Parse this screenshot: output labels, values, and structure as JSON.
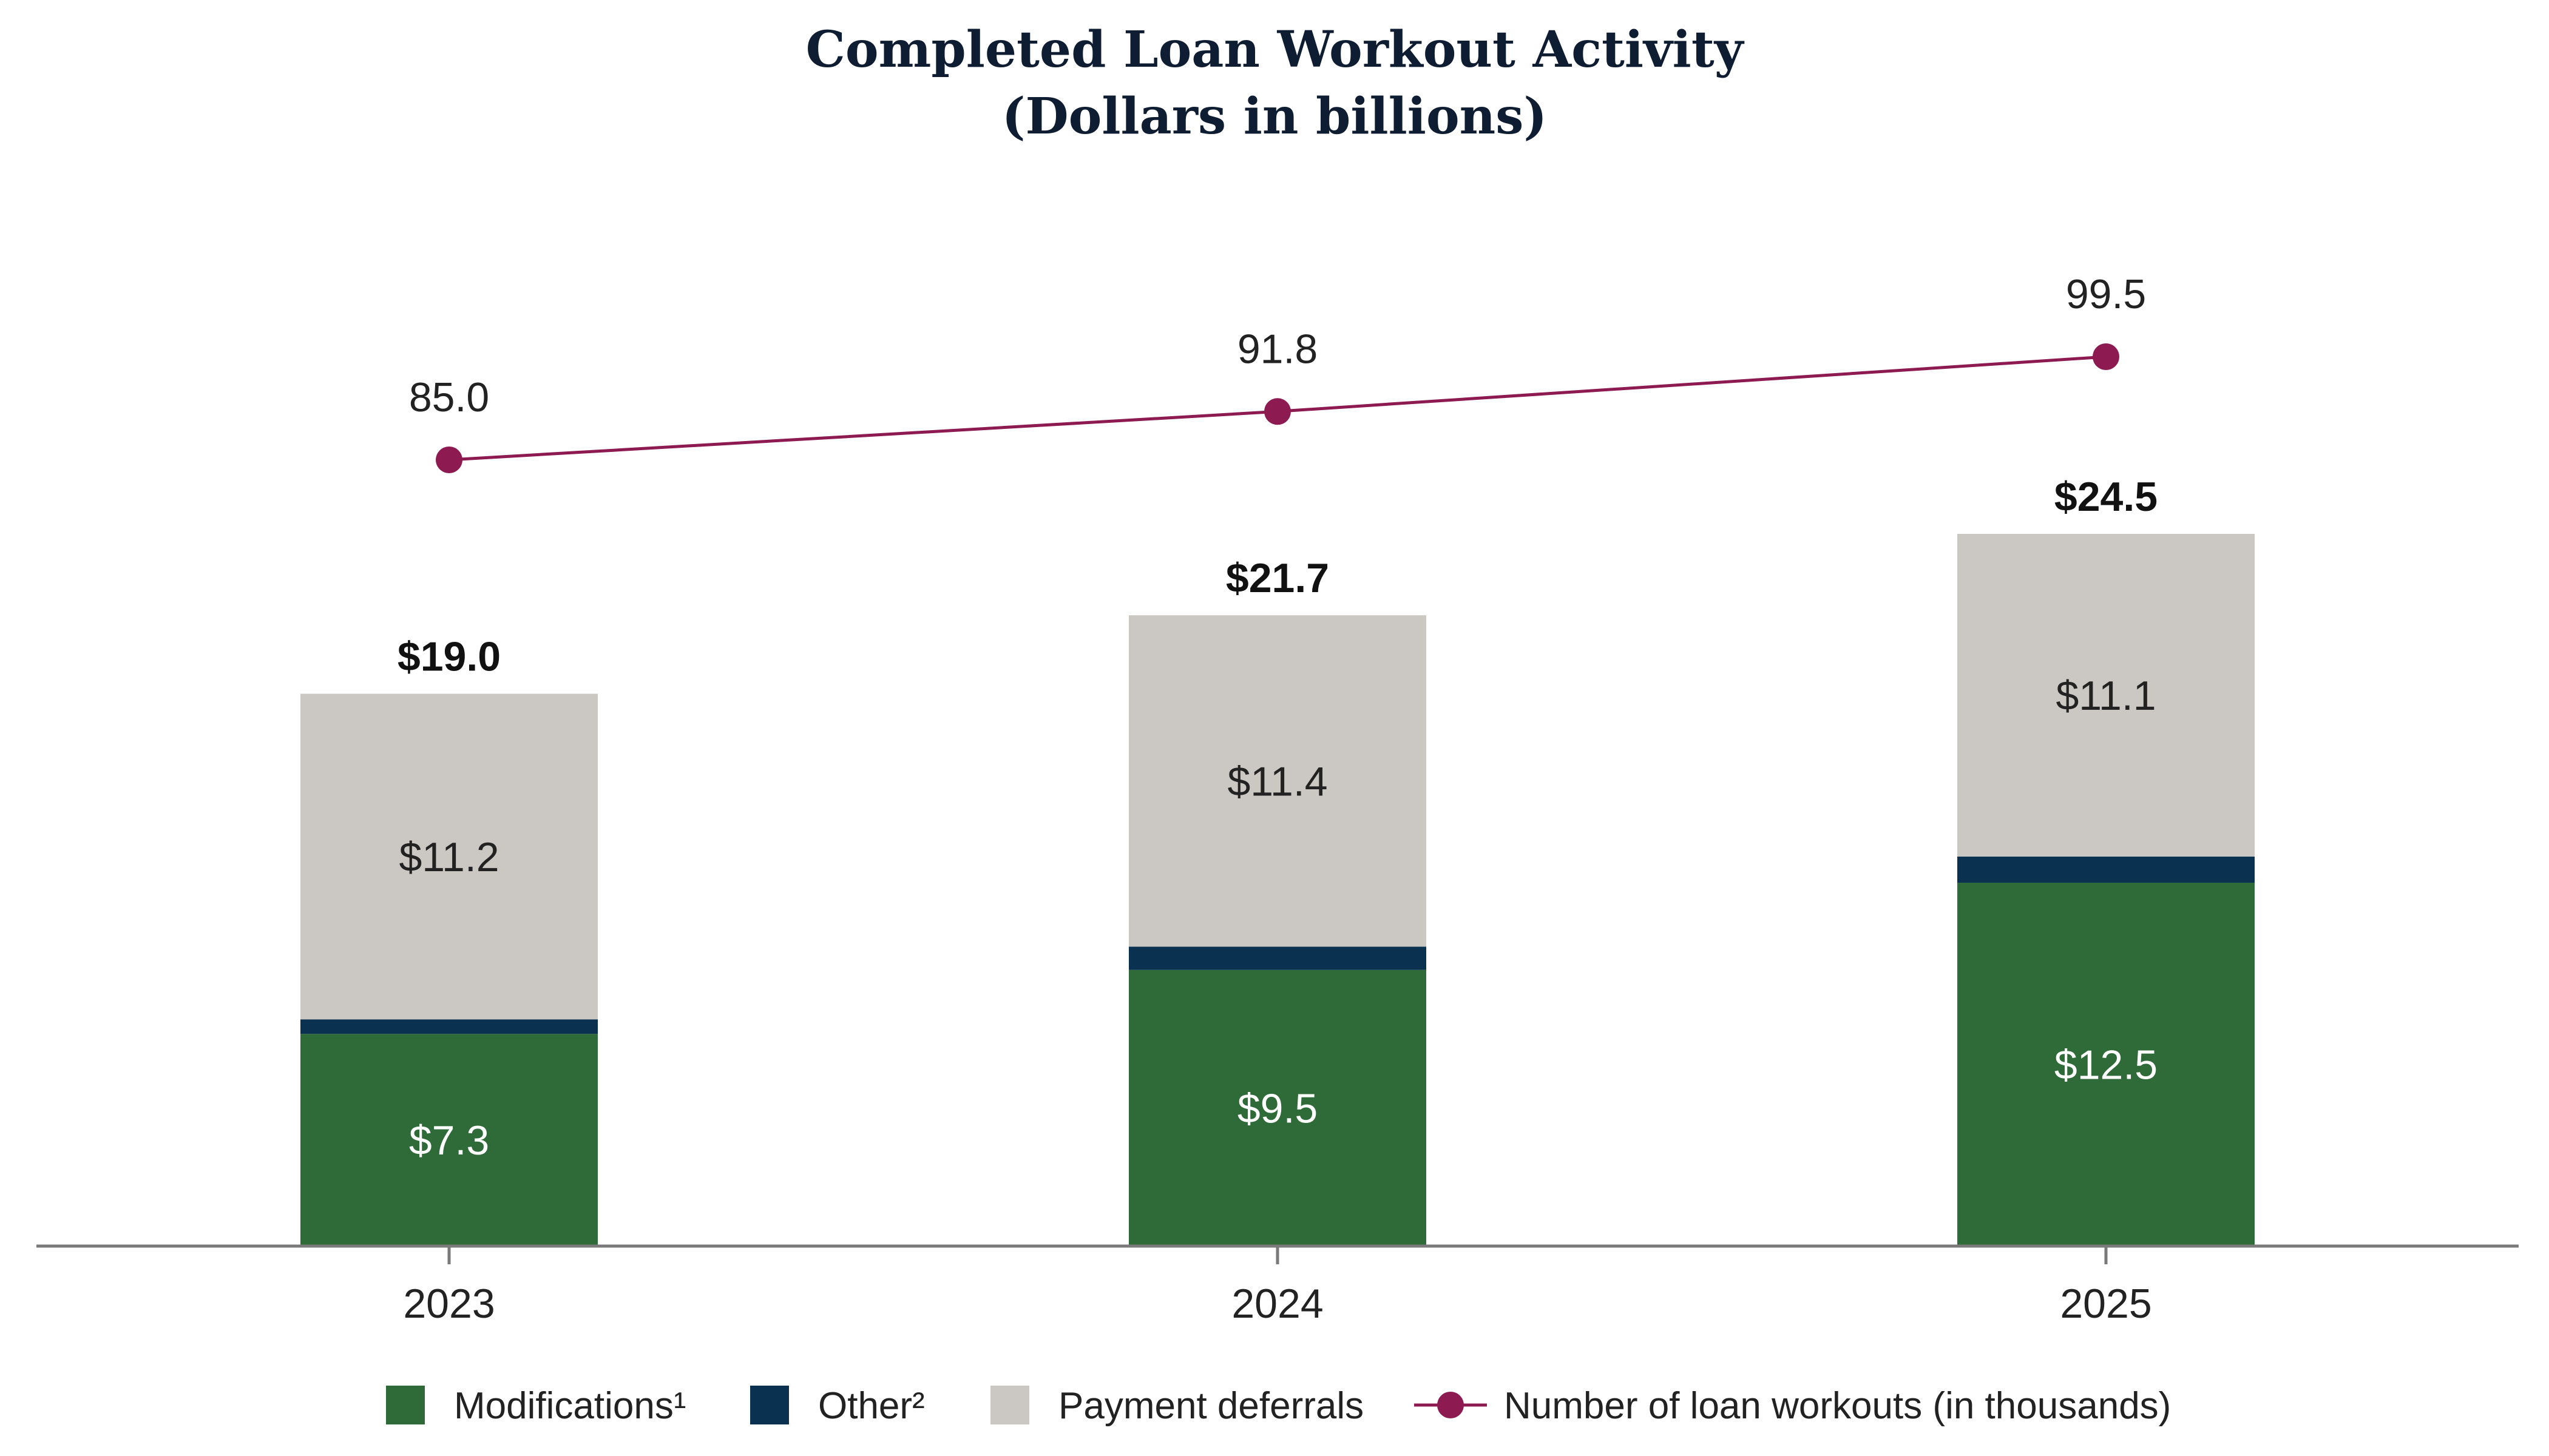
{
  "chart_data": {
    "type": "bar",
    "stacked": true,
    "title": "Completed Loan Workout Activity",
    "subtitle": "(Dollars in billions)",
    "categories": [
      "2023",
      "2024",
      "2025"
    ],
    "series": [
      {
        "name": "Modifications¹",
        "color": "#2e6b38",
        "values": [
          7.3,
          9.5,
          12.5
        ],
        "labels": [
          "$7.3",
          "$9.5",
          "$12.5"
        ]
      },
      {
        "name": "Other²",
        "color": "#0b3150",
        "values": [
          0.5,
          0.8,
          0.9
        ],
        "labels": [
          "",
          "",
          ""
        ]
      },
      {
        "name": "Payment deferrals",
        "color": "#cbc8c3",
        "values": [
          11.2,
          11.4,
          11.1
        ],
        "labels": [
          "$11.2",
          "$11.4",
          "$11.1"
        ]
      }
    ],
    "totals": [
      19.0,
      21.7,
      24.5
    ],
    "total_labels": [
      "$19.0",
      "$21.7",
      "$24.5"
    ],
    "line_series": {
      "name": "Number of loan workouts (in thousands)",
      "color": "#8e1a52",
      "values": [
        85.0,
        91.8,
        99.5
      ],
      "labels": [
        "85.0",
        "91.8",
        "99.5"
      ]
    },
    "ylim": [
      0,
      24.5
    ],
    "line_ylim": [
      0,
      99.5
    ],
    "legend_position": "bottom",
    "grid": false
  }
}
